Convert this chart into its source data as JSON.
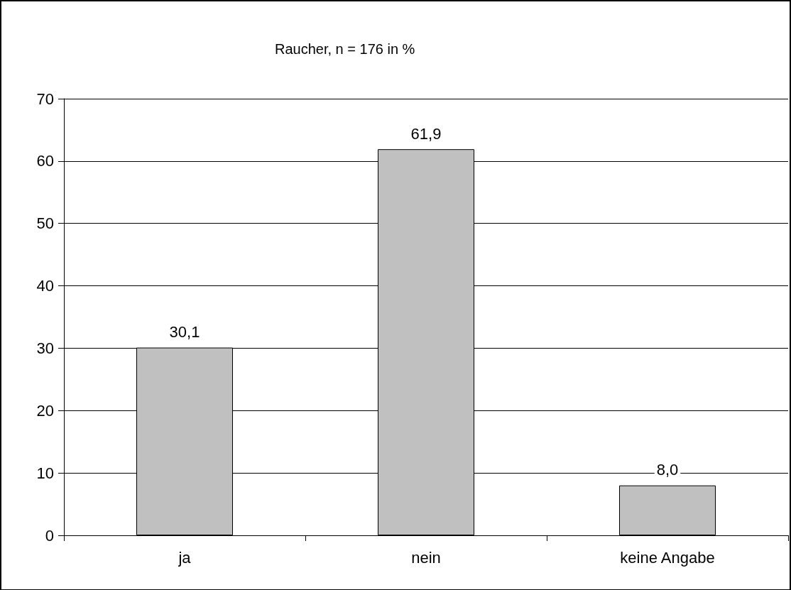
{
  "chart_data": {
    "type": "bar",
    "title": "Raucher, n = 176 in %",
    "categories": [
      "ja",
      "nein",
      "keine Angabe"
    ],
    "values": [
      30.1,
      61.9,
      8.0
    ],
    "value_labels": [
      "30,1",
      "61,9",
      "8,0"
    ],
    "color": "#c0c0c0",
    "ylim": [
      0,
      70
    ],
    "yticks": [
      0,
      10,
      20,
      30,
      40,
      50,
      60,
      70
    ],
    "grid": "y"
  }
}
